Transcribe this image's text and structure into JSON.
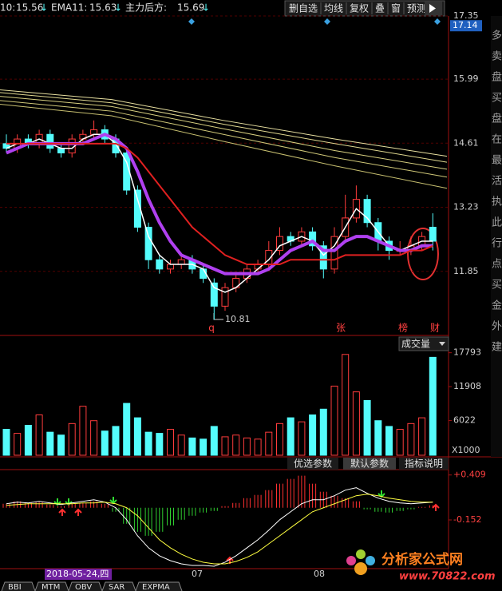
{
  "indicators": [
    {
      "name": "10:",
      "value": 15.56
    },
    {
      "name": "EMA11:",
      "value": 15.63
    },
    {
      "name": "主力后方:",
      "value": 15.69
    }
  ],
  "toolbar": [
    "删自选",
    "均线",
    "复权",
    "叠",
    "窗",
    "预测"
  ],
  "events": [
    "q",
    "张",
    "榜",
    "财"
  ],
  "panel_buttons": [
    "优选参数",
    "默认参数",
    "指标说明"
  ],
  "x_labels": [
    "2018-05-24,四",
    "07",
    "08"
  ],
  "tabs": [
    "BBI",
    "MTM",
    "OBV",
    "SAR",
    "EXPMA"
  ],
  "side_text": [
    "多",
    "卖",
    "盘",
    "买",
    "盘",
    "在",
    "最",
    "活",
    "执",
    "此",
    "行",
    "点",
    "买",
    "金",
    "外",
    "建"
  ],
  "logo": {
    "name": "分析家公式网",
    "url": "www.70822.com"
  },
  "chart_data": [
    {
      "type": "candlestick",
      "current_price": 17.14,
      "up_color": "#ff3c3c",
      "down_color": "#54fcfc",
      "ylim": [
        10.47,
        17.35
      ],
      "yticks": [
        11.85,
        13.23,
        14.61,
        15.99,
        17.35
      ],
      "open": [
        14.6,
        14.5,
        14.7,
        14.6,
        14.8,
        14.5,
        14.4,
        14.7,
        14.8,
        14.9,
        14.7,
        14.4,
        13.6,
        12.8,
        12.1,
        11.9,
        12.0,
        12.1,
        11.9,
        11.6,
        11.1,
        11.5,
        11.7,
        11.9,
        12.0,
        12.3,
        12.6,
        12.5,
        12.7,
        12.4,
        11.9,
        12.6,
        13.0,
        13.4,
        12.9,
        12.5,
        12.3,
        12.3,
        12.4,
        12.8
      ],
      "high": [
        14.8,
        14.8,
        14.8,
        14.9,
        14.9,
        14.6,
        14.8,
        14.9,
        15.1,
        15.0,
        14.8,
        14.5,
        13.7,
        12.9,
        12.2,
        12.1,
        12.2,
        12.2,
        12.0,
        11.7,
        11.6,
        11.8,
        12.0,
        12.1,
        12.5,
        12.8,
        12.7,
        12.8,
        12.8,
        12.5,
        12.8,
        13.5,
        13.7,
        13.5,
        13.0,
        12.6,
        12.5,
        12.6,
        12.7,
        13.1
      ],
      "low": [
        14.4,
        14.4,
        14.5,
        14.5,
        14.4,
        14.3,
        14.3,
        14.6,
        14.7,
        14.6,
        14.3,
        13.5,
        12.7,
        11.9,
        11.8,
        11.8,
        11.9,
        11.8,
        11.6,
        10.81,
        11.0,
        11.4,
        11.6,
        11.8,
        11.9,
        12.2,
        12.4,
        12.4,
        12.3,
        11.7,
        11.8,
        12.5,
        12.9,
        12.8,
        12.3,
        12.1,
        12.2,
        12.2,
        12.3,
        12.3
      ],
      "close": [
        14.5,
        14.7,
        14.6,
        14.8,
        14.5,
        14.4,
        14.7,
        14.8,
        14.9,
        14.7,
        14.4,
        13.6,
        12.8,
        12.1,
        11.9,
        12.0,
        12.1,
        11.9,
        11.7,
        11.1,
        11.5,
        11.7,
        11.9,
        12.0,
        12.3,
        12.6,
        12.5,
        12.7,
        12.4,
        11.9,
        12.6,
        13.0,
        13.4,
        12.9,
        12.5,
        12.3,
        12.3,
        12.4,
        12.6,
        12.5
      ],
      "lines": [
        {
          "color": "#ffffff",
          "width": 1.5,
          "values": [
            14.5,
            14.6,
            14.6,
            14.7,
            14.6,
            14.5,
            14.5,
            14.7,
            14.8,
            14.8,
            14.6,
            14.2,
            13.4,
            12.6,
            12.2,
            12.0,
            12.0,
            12.0,
            11.9,
            11.5,
            11.4,
            11.5,
            11.7,
            11.9,
            12.1,
            12.4,
            12.5,
            12.6,
            12.5,
            12.2,
            12.4,
            12.8,
            13.2,
            13.0,
            12.7,
            12.4,
            12.3,
            12.4,
            12.5,
            12.5
          ]
        },
        {
          "color": "#b040f0",
          "width": 4,
          "values": [
            14.4,
            14.5,
            14.6,
            14.6,
            14.6,
            14.6,
            14.6,
            14.6,
            14.7,
            14.8,
            14.7,
            14.5,
            14.0,
            13.4,
            12.9,
            12.5,
            12.2,
            12.1,
            12.0,
            11.9,
            11.8,
            11.8,
            11.8,
            11.8,
            11.9,
            12.1,
            12.3,
            12.4,
            12.5,
            12.3,
            12.3,
            12.5,
            12.6,
            12.6,
            12.5,
            12.4,
            12.3,
            12.3,
            12.4,
            12.4
          ]
        },
        {
          "color": "#e02020",
          "width": 2,
          "values": [
            14.6,
            14.6,
            14.6,
            14.6,
            14.6,
            14.6,
            14.6,
            14.6,
            14.6,
            14.6,
            14.6,
            14.5,
            14.3,
            14.0,
            13.7,
            13.4,
            13.1,
            12.8,
            12.6,
            12.4,
            12.2,
            12.1,
            12.0,
            12.0,
            12.0,
            12.0,
            12.1,
            12.1,
            12.1,
            12.1,
            12.1,
            12.2,
            12.2,
            12.2,
            12.2,
            12.2,
            12.2,
            12.3,
            12.3,
            12.4
          ]
        }
      ],
      "long_lines": [
        {
          "color": "#e8e0a0",
          "values": [
            15.76,
            15.55,
            15.1,
            14.7,
            14.33
          ]
        },
        {
          "color": "#e0d890",
          "values": [
            15.7,
            15.48,
            15.02,
            14.6,
            14.2
          ]
        },
        {
          "color": "#d8d080",
          "values": [
            15.62,
            15.4,
            14.92,
            14.45,
            14.05
          ]
        },
        {
          "color": "#d0c878",
          "values": [
            15.53,
            15.3,
            14.8,
            14.3,
            13.88
          ]
        },
        {
          "color": "#c8c070",
          "values": [
            15.45,
            15.2,
            14.65,
            14.12,
            13.64
          ]
        }
      ]
    },
    {
      "type": "bar",
      "title": "成交量",
      "unit": "X1000",
      "ylim": [
        0,
        18300
      ],
      "yticks": [
        6022,
        11908,
        17793
      ],
      "values": [
        4500,
        3800,
        5200,
        7000,
        4000,
        3500,
        5500,
        8500,
        6000,
        4200,
        5000,
        9000,
        6500,
        4000,
        3800,
        4500,
        3500,
        3000,
        2800,
        5000,
        3200,
        3500,
        3000,
        2800,
        4000,
        5500,
        6500,
        5800,
        7000,
        8000,
        12000,
        17500,
        11000,
        9500,
        6000,
        5000,
        4500,
        5500,
        6500,
        17000
      ]
    },
    {
      "type": "macd",
      "ylim": [
        -0.76,
        0.476
      ],
      "yticks": [
        {
          "value": 0.409,
          "label": "+0.409"
        },
        -0.152
      ],
      "histogram": [
        0.05,
        0.08,
        0.06,
        0.07,
        0.04,
        0.02,
        0.05,
        0.06,
        0.08,
        0.05,
        -0.05,
        -0.2,
        -0.3,
        -0.35,
        -0.3,
        -0.22,
        -0.15,
        -0.1,
        -0.06,
        -0.04,
        0.02,
        0.06,
        0.12,
        0.16,
        0.22,
        0.3,
        0.36,
        0.4,
        0.3,
        0.2,
        0.15,
        0.12,
        0.08,
        -0.02,
        -0.05,
        -0.06,
        -0.04,
        -0.02,
        0.01,
        0.03
      ],
      "series": [
        {
          "color": "#ffffff",
          "values": [
            0.05,
            0.07,
            0.06,
            0.08,
            0.06,
            0.04,
            0.06,
            0.08,
            0.1,
            0.07,
            0.0,
            -0.15,
            -0.35,
            -0.5,
            -0.6,
            -0.66,
            -0.7,
            -0.72,
            -0.72,
            -0.73,
            -0.68,
            -0.6,
            -0.5,
            -0.4,
            -0.28,
            -0.15,
            -0.05,
            0.05,
            0.1,
            0.1,
            0.15,
            0.22,
            0.25,
            0.18,
            0.12,
            0.08,
            0.06,
            0.05,
            0.06,
            0.07
          ]
        },
        {
          "color": "#ffff40",
          "values": [
            0.03,
            0.04,
            0.05,
            0.05,
            0.05,
            0.05,
            0.05,
            0.06,
            0.06,
            0.07,
            0.05,
            0.0,
            -0.1,
            -0.25,
            -0.4,
            -0.5,
            -0.58,
            -0.64,
            -0.68,
            -0.7,
            -0.7,
            -0.67,
            -0.62,
            -0.55,
            -0.45,
            -0.35,
            -0.25,
            -0.15,
            -0.05,
            0.0,
            0.05,
            0.1,
            0.15,
            0.17,
            0.15,
            0.12,
            0.1,
            0.08,
            0.07,
            0.07
          ]
        }
      ]
    }
  ]
}
